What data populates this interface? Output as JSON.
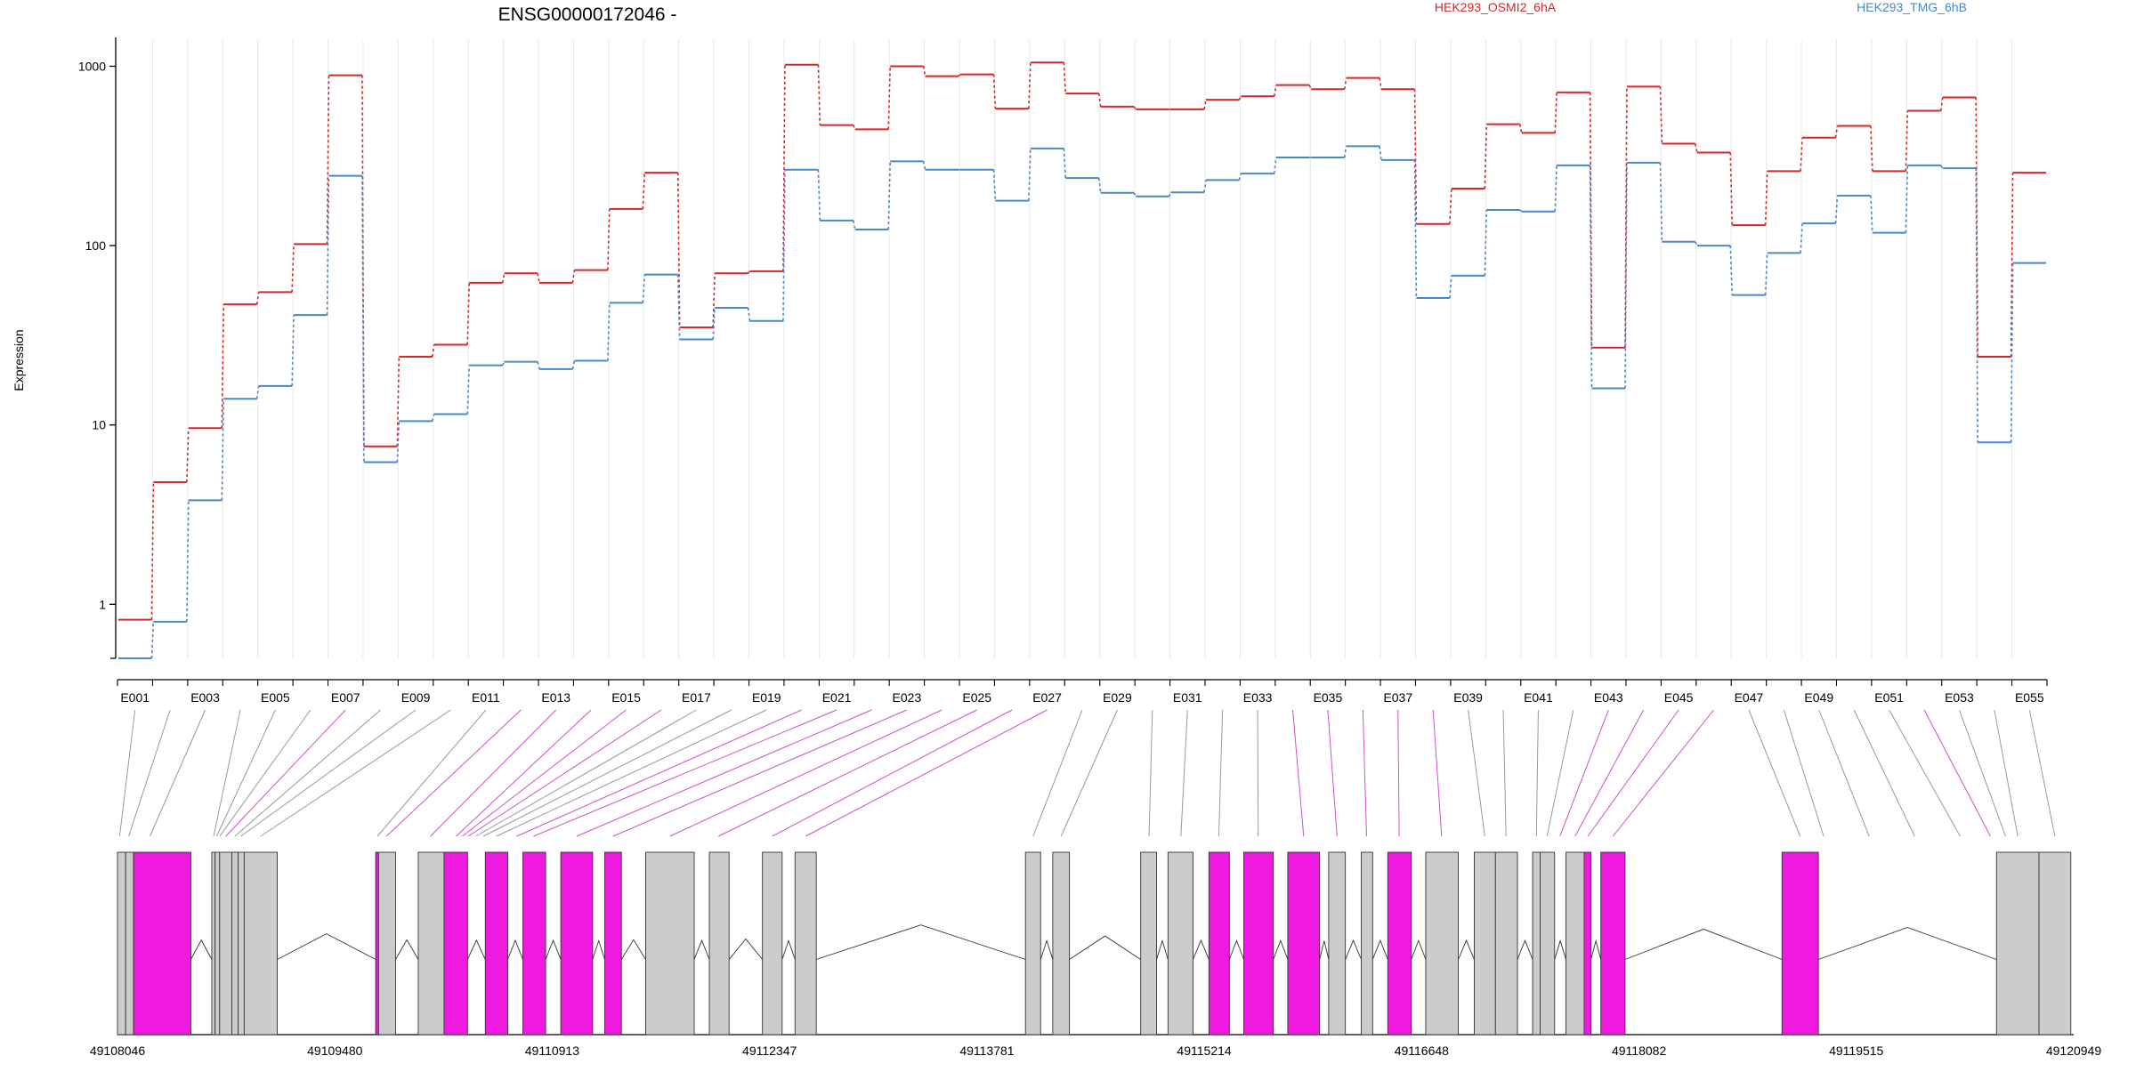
{
  "chart_data": {
    "type": "line",
    "title": "ENSG00000172046 -",
    "ylabel": "Expression",
    "y_scale": "log",
    "y_ticks": [
      1,
      10,
      100,
      1000
    ],
    "ylim": [
      0.5,
      1400
    ],
    "grid": "vertical",
    "legend_position": "top",
    "categories": [
      "E001",
      "E002",
      "E003",
      "E004",
      "E005",
      "E006",
      "E007",
      "E008",
      "E009",
      "E010",
      "E011",
      "E012",
      "E013",
      "E014",
      "E015",
      "E016",
      "E017",
      "E018",
      "E019",
      "E020",
      "E021",
      "E022",
      "E023",
      "E024",
      "E025",
      "E026",
      "E027",
      "E028",
      "E029",
      "E030",
      "E031",
      "E032",
      "E033",
      "E034",
      "E035",
      "E036",
      "E037",
      "E038",
      "E039",
      "E040",
      "E041",
      "E042",
      "E043",
      "E044",
      "E045",
      "E046",
      "E047",
      "E048",
      "E049",
      "E050",
      "E051",
      "E052",
      "E053",
      "E054",
      "E055"
    ],
    "shown_tick_labels": [
      "E001",
      "E003",
      "E005",
      "E007",
      "E009",
      "E011",
      "E013",
      "E015",
      "E017",
      "E019",
      "E021",
      "E023",
      "E025",
      "E027",
      "E029",
      "E031",
      "E033",
      "E035",
      "E037",
      "E039",
      "E041",
      "E043",
      "E045",
      "E047",
      "E049",
      "E051",
      "E053",
      "E055"
    ],
    "series": [
      {
        "name": "HEK293_OSMI2_6hA",
        "color": "#d62728",
        "values": [
          0.82,
          4.8,
          9.6,
          47,
          55,
          102,
          890,
          7.6,
          24,
          28,
          62,
          70,
          62,
          73,
          160,
          255,
          35,
          70,
          72,
          1020,
          470,
          445,
          1000,
          880,
          900,
          580,
          1050,
          705,
          595,
          575,
          575,
          650,
          680,
          785,
          745,
          860,
          745,
          132,
          208,
          475,
          425,
          715,
          27,
          770,
          370,
          330,
          130,
          260,
          400,
          465,
          260,
          565,
          670,
          24,
          255
        ]
      },
      {
        "name": "HEK293_TMG_6hB",
        "color": "#4a86c8",
        "values": [
          0.5,
          0.8,
          3.8,
          14,
          16.5,
          41,
          245,
          6.2,
          10.5,
          11.5,
          21.5,
          22.5,
          20.5,
          22.8,
          48,
          69,
          30,
          45,
          38,
          265,
          138,
          123,
          295,
          265,
          265,
          178,
          348,
          238,
          197,
          188,
          198,
          232,
          252,
          310,
          310,
          358,
          300,
          51,
          68,
          158,
          155,
          280,
          16,
          290,
          105,
          100,
          53,
          91,
          133,
          190,
          118,
          280,
          270,
          8,
          80
        ]
      }
    ],
    "gene_coordinates": [
      "49108046",
      "49109480",
      "49110913",
      "49112347",
      "49113781",
      "49115214",
      "49116648",
      "49118082",
      "49119515",
      "49120949"
    ],
    "exon_highlight_color": "#f019e0",
    "exon_default_color": "#cccccc"
  }
}
